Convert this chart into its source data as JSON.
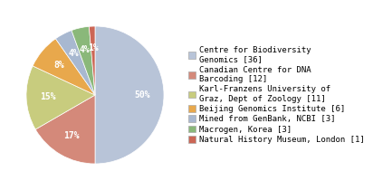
{
  "labels": [
    "Centre for Biodiversity\nGenomics [36]",
    "Canadian Centre for DNA\nBarcoding [12]",
    "Karl-Franzens University of\nGraz, Dept of Zoology [11]",
    "Beijing Genomics Institute [6]",
    "Mined from GenBank, NCBI [3]",
    "Macrogen, Korea [3]",
    "Natural History Museum, London [1]"
  ],
  "values": [
    36,
    12,
    11,
    6,
    3,
    3,
    1
  ],
  "colors": [
    "#b8c4d8",
    "#d4897a",
    "#c8cc7e",
    "#e8a84c",
    "#a8b8d0",
    "#8ab87a",
    "#cc6655"
  ],
  "startangle": 90,
  "background_color": "#ffffff",
  "pct_font_size": 7,
  "legend_font_size": 6.5
}
